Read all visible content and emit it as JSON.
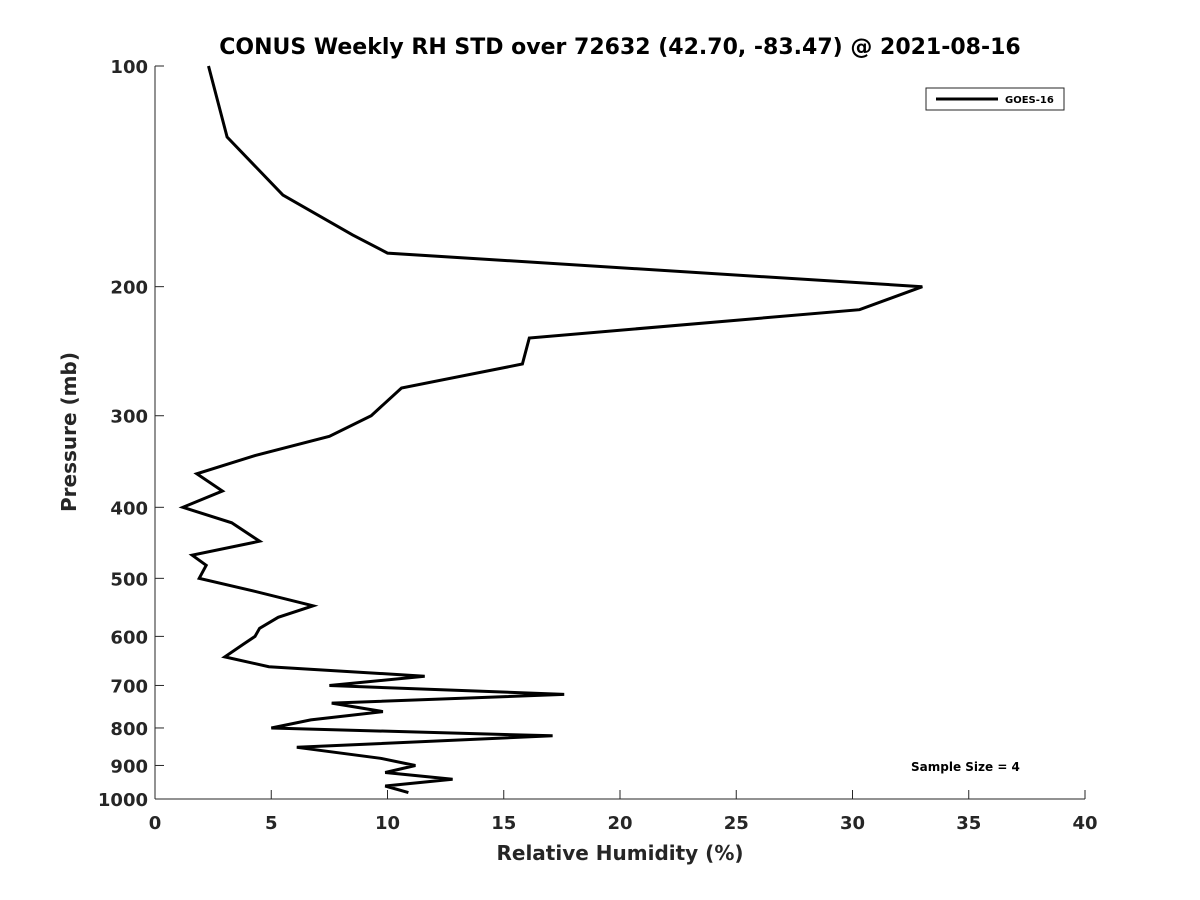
{
  "chart_data": {
    "type": "line",
    "title": "CONUS Weekly RH STD over 72632 (42.70, -83.47) @ 2021-08-16",
    "xlabel": "Relative Humidity (%)",
    "ylabel": "Pressure (mb)",
    "xlim": [
      0,
      40
    ],
    "ylim": [
      100,
      1000
    ],
    "yscale": "log",
    "y_reversed": true,
    "x_ticks": [
      0,
      5,
      10,
      15,
      20,
      25,
      30,
      35,
      40
    ],
    "x_tick_labels": [
      "0",
      "5",
      "10",
      "15",
      "20",
      "25",
      "30",
      "35",
      "40"
    ],
    "y_ticks": [
      100,
      200,
      300,
      400,
      500,
      600,
      700,
      800,
      900,
      1000
    ],
    "y_tick_labels": [
      "100",
      "200",
      "300",
      "400",
      "500",
      "600",
      "700",
      "800",
      "900",
      "1000"
    ],
    "grid": false,
    "legend_position": "top-right",
    "annotation": "Sample Size = 4",
    "series": [
      {
        "name": "GOES-16",
        "color": "#000000",
        "x": [
          2.3,
          3.1,
          5.5,
          8.5,
          10.0,
          33.0,
          30.3,
          16.1,
          15.8,
          10.6,
          9.3,
          7.5,
          4.3,
          1.8,
          2.9,
          1.2,
          3.3,
          4.5,
          1.6,
          2.2,
          1.9,
          4.2,
          6.8,
          5.3,
          4.5,
          4.3,
          3.8,
          3.0,
          4.9,
          11.6,
          7.5,
          17.6,
          7.6,
          9.8,
          6.7,
          5.0,
          17.1,
          6.1,
          9.7,
          11.2,
          9.9,
          12.8,
          9.9,
          10.9
        ],
        "y": [
          100,
          125,
          150,
          170,
          180,
          200,
          215,
          235,
          255,
          275,
          300,
          320,
          340,
          360,
          380,
          400,
          420,
          445,
          465,
          480,
          500,
          520,
          545,
          565,
          585,
          600,
          615,
          640,
          660,
          680,
          700,
          720,
          740,
          760,
          780,
          800,
          820,
          850,
          880,
          900,
          920,
          940,
          960,
          980
        ]
      }
    ]
  }
}
